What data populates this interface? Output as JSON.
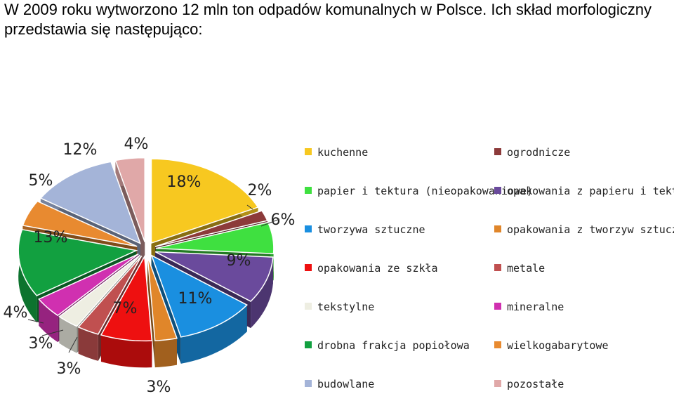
{
  "intro_text": "W 2009 roku wytworzono 12 mln ton odpadów komunalnych w Polsce. Ich skład morfologiczny przedstawia się następująco:",
  "chart_data": {
    "type": "pie",
    "title": "",
    "series": [
      {
        "name": "kuchenne",
        "value": 18,
        "label": "18%",
        "color": "#f7c820"
      },
      {
        "name": "ogrodnicze",
        "value": 2,
        "label": "2%",
        "color": "#8c3a3a"
      },
      {
        "name": "papier i tektura (nieopakowaniowe)",
        "value": 6,
        "label": "6%",
        "color": "#3fe040"
      },
      {
        "name": "opakowania z papieru i tektury",
        "value": 9,
        "label": "9%",
        "color": "#6a4a9c"
      },
      {
        "name": "tworzywa sztuczne",
        "value": 11,
        "label": "11%",
        "color": "#1a8fe0"
      },
      {
        "name": "opakowania z tworzyw sztucznych",
        "value": 3,
        "label": "3%",
        "color": "#e0862a"
      },
      {
        "name": "opakowania ze szkła",
        "value": 7,
        "label": "7%",
        "color": "#ee1010"
      },
      {
        "name": "metale",
        "value": 3,
        "label": "3%",
        "color": "#c05050"
      },
      {
        "name": "tekstylne",
        "value": 3,
        "label": "3%",
        "color": "#eeeee2"
      },
      {
        "name": "mineralne",
        "value": 4,
        "label": "4%",
        "color": "#d030b0"
      },
      {
        "name": "drobna frakcja popiołowa",
        "value": 13,
        "label": "13%",
        "color": "#12a040"
      },
      {
        "name": "wielkogabarytowe",
        "value": 5,
        "label": "5%",
        "color": "#e88a30"
      },
      {
        "name": "budowlane",
        "value": 12,
        "label": "12%",
        "color": "#a4b4d8"
      },
      {
        "name": "pozostałe",
        "value": 4,
        "label": "4%",
        "color": "#e0a8a8"
      }
    ],
    "legend": {
      "placement": "right",
      "columns": [
        [
          "kuchenne",
          "papier i tektura (nieopakowaniowe)",
          "tworzywa sztuczne",
          "opakowania ze szkła",
          "tekstylne",
          "drobna frakcja popiołowa",
          "budowlane"
        ],
        [
          "ogrodnicze",
          "opakowania z papieru i tektury",
          "opakowania z tworzyw sztucznych",
          "metale",
          "mineralne",
          "wielkogabarytowe",
          "pozostałe"
        ]
      ]
    }
  }
}
